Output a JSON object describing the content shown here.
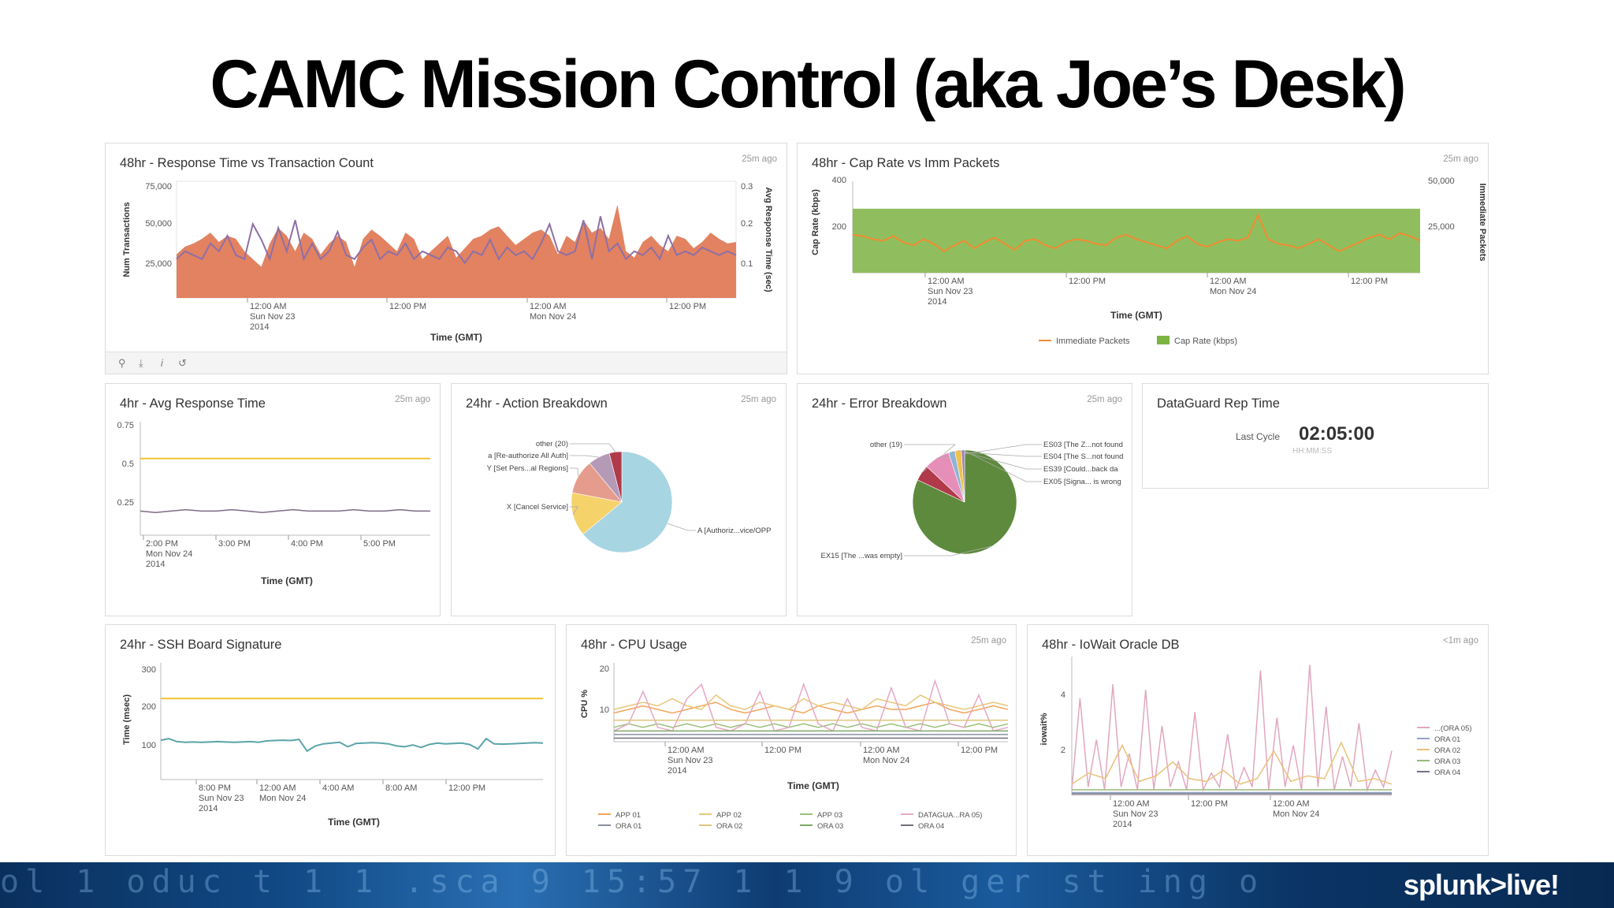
{
  "slide": {
    "title": "CAMC  Mission  Control  (aka Joe’s Desk)"
  },
  "footer": {
    "brand": "splunk>live!",
    "background_glyphs": "ol 1 oduc t 1 1 .sca 9 15:57 1 1 9 ol ger st ing o"
  },
  "panels": {
    "response_tx": {
      "title": "48hr - Response Time vs Transaction Count",
      "age": "25m ago",
      "toolbar": [
        "search-icon",
        "download-icon",
        "info-icon",
        "refresh-icon"
      ]
    },
    "cap_rate": {
      "title": "48hr - Cap Rate vs Imm Packets",
      "age": "25m ago"
    },
    "avg_response": {
      "title": "4hr - Avg Response Time",
      "age": "25m ago"
    },
    "action_breakdown": {
      "title": "24hr - Action Breakdown",
      "age": "25m ago"
    },
    "error_breakdown": {
      "title": "24hr - Error Breakdown",
      "age": "25m ago"
    },
    "dataguard": {
      "title": "DataGuard Rep Time",
      "label": "Last Cycle",
      "value": "02:05:00",
      "format": "HH:MM:SS"
    },
    "ssh": {
      "title": "24hr - SSH Board Signature"
    },
    "cpu": {
      "title": "48hr - CPU Usage",
      "age": "25m ago"
    },
    "iowait": {
      "title": "48hr - IoWait Oracle DB",
      "age": "<1m ago"
    }
  },
  "chart_data": [
    {
      "id": "response_tx",
      "type": "area",
      "xlabel": "Time (GMT)",
      "ylabel": "Num Transactions",
      "y2label": "Avg Response Time (sec)",
      "x_ticks": [
        [
          "12:00 AM",
          "Sun Nov 23",
          "2014"
        ],
        [
          "12:00 PM"
        ],
        [
          "12:00 AM",
          "Mon Nov 24"
        ],
        [
          "12:00 PM"
        ]
      ],
      "y_ticks": [
        "75,000",
        "50,000",
        "25,000"
      ],
      "y2_ticks": [
        "0.3",
        "0.2",
        "0.1"
      ],
      "ylim": [
        0,
        75000
      ],
      "y2lim": [
        0,
        0.3
      ],
      "series": [
        {
          "name": "Num Transactions",
          "color": "#e07b58",
          "values": [
            28000,
            33000,
            35000,
            38000,
            42000,
            36000,
            40000,
            38000,
            30000,
            25000,
            20000,
            35000,
            45000,
            40000,
            30000,
            42000,
            38000,
            28000,
            35000,
            40000,
            36000,
            20000,
            38000,
            44000,
            40000,
            35000,
            30000,
            42000,
            38000,
            25000,
            30000,
            35000,
            40000,
            26000,
            32000,
            38000,
            40000,
            44000,
            46000,
            40000,
            34000,
            38000,
            42000,
            44000,
            40000,
            28000,
            40000,
            36000,
            50000,
            42000,
            45000,
            38000,
            60000,
            30000,
            26000,
            36000,
            40000,
            34000,
            30000,
            40000,
            38000,
            32000,
            36000,
            42000,
            38000,
            35000,
            36000
          ]
        },
        {
          "name": "Avg Response Time",
          "color": "#8e6fa6",
          "values": [
            0.1,
            0.12,
            0.11,
            0.1,
            0.14,
            0.12,
            0.16,
            0.11,
            0.1,
            0.19,
            0.15,
            0.1,
            0.18,
            0.12,
            0.2,
            0.1,
            0.14,
            0.1,
            0.12,
            0.17,
            0.11,
            0.1,
            0.13,
            0.15,
            0.1,
            0.12,
            0.11,
            0.14,
            0.1,
            0.12,
            0.11,
            0.1,
            0.13,
            0.12,
            0.09,
            0.12,
            0.11,
            0.15,
            0.1,
            0.13,
            0.11,
            0.12,
            0.1,
            0.14,
            0.19,
            0.12,
            0.11,
            0.12,
            0.2,
            0.1,
            0.21,
            0.12,
            0.14,
            0.1,
            0.12,
            0.11,
            0.13,
            0.1,
            0.16,
            0.11,
            0.12,
            0.11,
            0.13,
            0.12,
            0.11,
            0.12,
            0.11
          ]
        }
      ]
    },
    {
      "id": "cap_rate",
      "type": "line",
      "xlabel": "Time (GMT)",
      "ylabel": "Cap Rate (kbps)",
      "y2label": "Immediate Packets",
      "x_ticks": [
        [
          "12:00 AM",
          "Sun Nov 23",
          "2014"
        ],
        [
          "12:00 PM"
        ],
        [
          "12:00 AM",
          "Mon Nov 24"
        ],
        [
          "12:00 PM"
        ]
      ],
      "y_ticks": [
        "400",
        "200"
      ],
      "y2_ticks": [
        "50,000",
        "25,000"
      ],
      "ylim": [
        0,
        400
      ],
      "y2lim": [
        0,
        60000
      ],
      "legend": [
        "Immediate Packets",
        "Cap Rate (kbps)"
      ],
      "series": [
        {
          "name": "Cap Rate (kbps)",
          "color": "#7cb342",
          "values": [
            280,
            280
          ]
        },
        {
          "name": "Immediate Packets",
          "color": "#f28b33",
          "values": [
            25000,
            24000,
            22000,
            21000,
            24000,
            20000,
            18000,
            22000,
            19000,
            14000,
            18000,
            21000,
            16000,
            20000,
            23000,
            19000,
            15000,
            21000,
            22000,
            18000,
            16000,
            20000,
            22000,
            21000,
            19000,
            18000,
            23000,
            25000,
            22000,
            20000,
            18000,
            16000,
            21000,
            24000,
            19000,
            17000,
            20000,
            22000,
            21000,
            23000,
            38000,
            22000,
            19000,
            18000,
            16000,
            19000,
            22000,
            18000,
            14000,
            17000,
            20000,
            23000,
            25000,
            22000,
            26000,
            24000,
            21000
          ]
        }
      ]
    },
    {
      "id": "avg_response",
      "type": "line",
      "xlabel": "Time (GMT)",
      "x_ticks": [
        [
          "2:00 PM",
          "Mon Nov 24",
          "2014"
        ],
        [
          "3:00 PM"
        ],
        [
          "4:00 PM"
        ],
        [
          "5:00 PM"
        ]
      ],
      "y_ticks": [
        "0.75",
        "0.5",
        "0.25"
      ],
      "ylim": [
        0,
        0.8
      ],
      "series": [
        {
          "name": "threshold",
          "color": "#f1c232",
          "values": [
            0.54,
            0.54
          ]
        },
        {
          "name": "response",
          "color": "#7d6b86",
          "values": [
            0.17,
            0.16,
            0.17,
            0.18,
            0.17,
            0.17,
            0.18,
            0.17,
            0.16,
            0.17,
            0.18,
            0.17,
            0.17,
            0.17,
            0.18,
            0.17,
            0.17,
            0.18,
            0.17,
            0.17
          ]
        }
      ]
    },
    {
      "id": "action_breakdown",
      "type": "pie",
      "slices": [
        {
          "label": "A [Authoriz...vice/OPP",
          "value": 64,
          "color": "#a8d5e2"
        },
        {
          "label": "X [Cancel Service]",
          "value": 14,
          "color": "#f6d26b"
        },
        {
          "label": "Y [Set Pers...al Regions]",
          "value": 11,
          "color": "#e59c8d"
        },
        {
          "label": "a [Re-authorize All Auth]",
          "value": 7,
          "color": "#b59ab8"
        },
        {
          "label": "other (20)",
          "value": 4,
          "color": "#b03a4a"
        }
      ]
    },
    {
      "id": "error_breakdown",
      "type": "pie",
      "slices": [
        {
          "label": "EX15 [The ...was empty]",
          "value": 82,
          "color": "#5d8a3c"
        },
        {
          "label": "other (19)",
          "value": 5,
          "color": "#b03a4a"
        },
        {
          "label": "ES03 [The Z...not found",
          "value": 8,
          "color": "#e58fb8"
        },
        {
          "label": "ES04 [The S...not found",
          "value": 2,
          "color": "#8fb4d6"
        },
        {
          "label": "ES39 [Could...back da",
          "value": 2,
          "color": "#f0c14b"
        },
        {
          "label": "EX05 [Signa... is wrong",
          "value": 1,
          "color": "#9a7fb5"
        }
      ]
    },
    {
      "id": "ssh",
      "type": "line",
      "xlabel": "Time (GMT)",
      "ylabel": "Time (msec)",
      "x_ticks": [
        [
          "8:00 PM",
          "Sun Nov 23",
          "2014"
        ],
        [
          "12:00 AM",
          "Mon Nov 24"
        ],
        [
          "4:00 AM"
        ],
        [
          "8:00 AM"
        ],
        [
          "12:00 PM"
        ]
      ],
      "y_ticks": [
        "300",
        "200",
        "100"
      ],
      "ylim": [
        0,
        320
      ],
      "series": [
        {
          "name": "threshold",
          "color": "#f1c232",
          "values": [
            222,
            222
          ]
        },
        {
          "name": "signature",
          "color": "#5ba4a8",
          "values": [
            108,
            112,
            104,
            102,
            103,
            102,
            103,
            104,
            103,
            102,
            103,
            104,
            102,
            106,
            107,
            108,
            107,
            110,
            78,
            92,
            98,
            100,
            102,
            90,
            99,
            100,
            101,
            100,
            98,
            92,
            90,
            95,
            88,
            96,
            100,
            98,
            99,
            100,
            96,
            84,
            112,
            98,
            97,
            98,
            99,
            100,
            101,
            100
          ]
        }
      ]
    },
    {
      "id": "cpu",
      "type": "line",
      "xlabel": "Time (GMT)",
      "ylabel": "CPU %",
      "x_ticks": [
        [
          "12:00 AM",
          "Sun Nov 23",
          "2014"
        ],
        [
          "12:00 PM"
        ],
        [
          "12:00 AM",
          "Mon Nov 24"
        ],
        [
          "12:00 PM"
        ]
      ],
      "y_ticks": [
        "20",
        "10"
      ],
      "ylim": [
        0,
        22
      ],
      "legend": [
        "APP 01",
        "APP 02",
        "APP 03",
        "DATAGUA...RA 05)",
        "ORA 01",
        "ORA 02",
        "ORA 03",
        "ORA 04"
      ],
      "series": [
        {
          "name": "APP 01",
          "color": "#f2a55a",
          "values": [
            8,
            9,
            10,
            9,
            8,
            9,
            10,
            11,
            9,
            8,
            9,
            10,
            9,
            8,
            10,
            9,
            8,
            9,
            10,
            9,
            9,
            10,
            11,
            9,
            8,
            9,
            10,
            9
          ]
        },
        {
          "name": "APP 02",
          "color": "#e8c77a",
          "values": [
            9,
            10,
            11,
            10,
            12,
            10,
            9,
            13,
            10,
            9,
            11,
            10,
            9,
            12,
            10,
            11,
            10,
            9,
            12,
            11,
            10,
            13,
            11,
            10,
            9,
            10,
            11,
            10
          ]
        },
        {
          "name": "APP 03",
          "color": "#9ac07a",
          "values": [
            4,
            5,
            4,
            5,
            4,
            5,
            4,
            5,
            4,
            5,
            4,
            5,
            4,
            5,
            4,
            5,
            4,
            5,
            4,
            5,
            4,
            5,
            4,
            5,
            4,
            5,
            4,
            5
          ]
        },
        {
          "name": "DATAGUA...RA 05)",
          "color": "#e7a6c6",
          "values": [
            3,
            5,
            14,
            4,
            3,
            12,
            16,
            4,
            3,
            5,
            14,
            3,
            4,
            16,
            5,
            3,
            12,
            4,
            3,
            15,
            4,
            3,
            17,
            5,
            4,
            13,
            3,
            4
          ]
        },
        {
          "name": "ORA 01",
          "color": "#8a8fa0",
          "values": [
            2,
            2,
            2,
            2,
            2,
            2,
            2,
            2,
            2,
            2,
            2,
            2,
            2,
            2,
            2,
            2,
            2,
            2,
            2,
            2,
            2,
            2,
            2,
            2,
            2,
            2,
            2,
            2
          ]
        },
        {
          "name": "ORA 02",
          "color": "#e0c47e",
          "values": [
            6,
            6,
            6,
            6,
            6,
            6,
            6,
            6,
            6,
            6,
            6,
            6,
            6,
            6,
            6,
            6,
            6,
            6,
            6,
            6,
            6,
            6,
            6,
            6,
            6,
            6,
            6,
            6
          ]
        },
        {
          "name": "ORA 03",
          "color": "#7fa86a",
          "values": [
            3,
            3,
            3,
            3,
            3,
            3,
            3,
            3,
            3,
            3,
            3,
            3,
            3,
            3,
            3,
            3,
            3,
            3,
            3,
            3,
            3,
            3,
            3,
            3,
            3,
            3,
            3,
            3
          ]
        },
        {
          "name": "ORA 04",
          "color": "#6f6f7a",
          "values": [
            1,
            1,
            1,
            1,
            1,
            1,
            1,
            1,
            1,
            1,
            1,
            1,
            1,
            1,
            1,
            1,
            1,
            1,
            1,
            1,
            1,
            1,
            1,
            1,
            1,
            1,
            1,
            1
          ]
        }
      ]
    },
    {
      "id": "iowait",
      "type": "line",
      "xlabel": "",
      "ylabel": "iowait%",
      "x_ticks": [
        [
          "12:00 AM",
          "Sun Nov 23",
          "2014"
        ],
        [
          "12:00 PM"
        ],
        [
          "12:00 AM",
          "Mon Nov 24"
        ]
      ],
      "y_ticks": [
        "4",
        "2"
      ],
      "ylim": [
        0,
        5
      ],
      "legend": [
        "...(ORA 05)",
        "ORA 01",
        "ORA 02",
        "ORA 03",
        "ORA 04"
      ],
      "series": [
        {
          "name": "...(ORA 05)",
          "color": "#e2a7c0",
          "values": [
            0.2,
            3.5,
            0.3,
            2.0,
            0.2,
            4.0,
            0.3,
            1.5,
            0.2,
            3.8,
            0.2,
            2.5,
            0.3,
            1.2,
            0.2,
            3.0,
            0.2,
            0.8,
            0.3,
            2.2,
            0.2,
            1.0,
            0.3,
            4.5,
            0.2,
            2.8,
            0.3,
            1.8,
            0.2,
            4.7,
            0.3,
            3.2,
            0.2,
            1.4,
            0.3,
            2.6,
            0.2,
            0.9,
            0.3,
            1.6
          ]
        },
        {
          "name": "ORA 01",
          "color": "#8fa5c2",
          "values": [
            0.1,
            0.1,
            0.1,
            0.1,
            0.1,
            0.1,
            0.1,
            0.1,
            0.1,
            0.1,
            0.1,
            0.1,
            0.1,
            0.1,
            0.1,
            0.1,
            0.1,
            0.1,
            0.1,
            0.1
          ]
        },
        {
          "name": "ORA 02",
          "color": "#e9c27a",
          "values": [
            0.4,
            0.8,
            0.6,
            1.8,
            0.5,
            0.7,
            1.2,
            0.6,
            0.5,
            0.9,
            0.4,
            0.6,
            1.6,
            0.5,
            0.7,
            0.6,
            1.9,
            0.5,
            0.6,
            0.4
          ]
        },
        {
          "name": "ORA 03",
          "color": "#9ab97a",
          "values": [
            0.2,
            0.2,
            0.2,
            0.2,
            0.2,
            0.2,
            0.2,
            0.2,
            0.2,
            0.2,
            0.2,
            0.2,
            0.2,
            0.2,
            0.2,
            0.2,
            0.2,
            0.2,
            0.2,
            0.2
          ]
        },
        {
          "name": "ORA 04",
          "color": "#7b6f86",
          "values": [
            0.05,
            0.05,
            0.05,
            0.05,
            0.05,
            0.05,
            0.05,
            0.05,
            0.05,
            0.05,
            0.05,
            0.05,
            0.05,
            0.05,
            0.05,
            0.05,
            0.05,
            0.05,
            0.05,
            0.05
          ]
        }
      ]
    }
  ]
}
